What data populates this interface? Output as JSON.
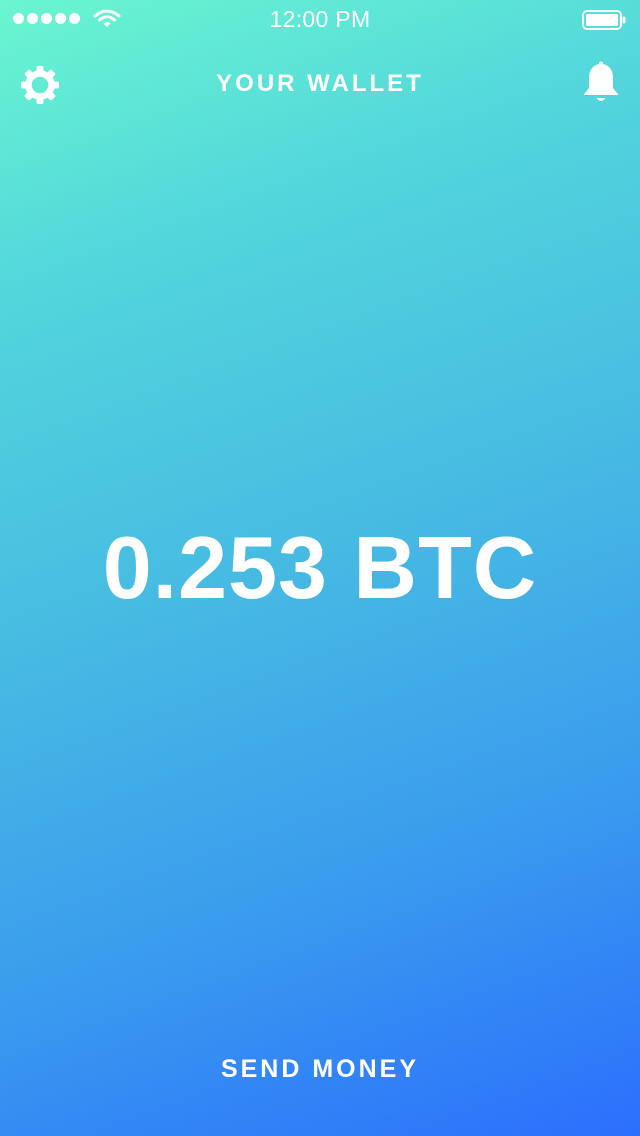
{
  "status_bar": {
    "time": "12:00 PM",
    "signal_icon": "signal-dots-icon",
    "wifi_icon": "wifi-icon",
    "battery_icon": "battery-icon"
  },
  "nav": {
    "title": "YOUR WALLET",
    "left_icon": "gear-icon",
    "right_icon": "bell-icon"
  },
  "wallet": {
    "balance": "0.253 BTC"
  },
  "actions": {
    "send_label": "SEND MONEY"
  },
  "colors": {
    "gradient_start": "#6af6cf",
    "gradient_end": "#2b6ffd",
    "text": "#ffffff"
  }
}
